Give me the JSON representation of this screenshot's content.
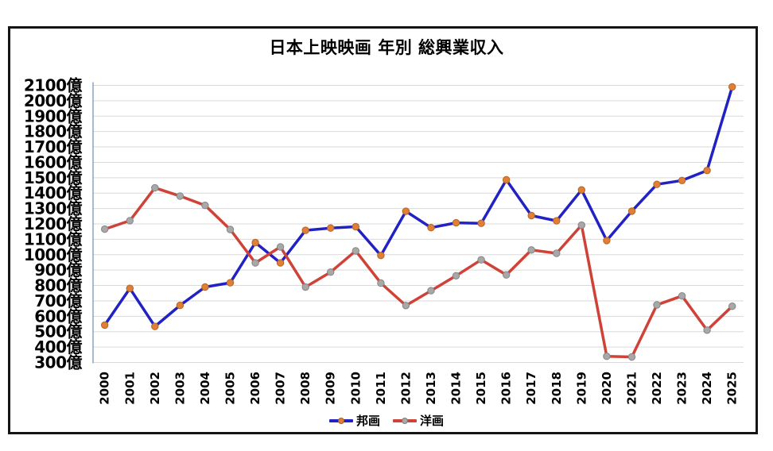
{
  "chart_data": {
    "type": "line",
    "title": "日本上映映画 年別 総興業収入",
    "xlabel": "",
    "ylabel": "",
    "unit": "億円",
    "categories": [
      "2000",
      "2001",
      "2002",
      "2003",
      "2004",
      "2005",
      "2006",
      "2007",
      "2008",
      "2009",
      "2010",
      "2011",
      "2012",
      "2013",
      "2014",
      "2015",
      "2016",
      "2017",
      "2018",
      "2019",
      "2020",
      "2021",
      "2022",
      "2023",
      "2024",
      "2025"
    ],
    "series": [
      {
        "name": "邦画",
        "line_color": "#2222c4",
        "marker_color": "#e07f35",
        "marker_edge_color": "#b36524",
        "values": [
          543,
          781,
          534,
          671,
          790,
          818,
          1079,
          947,
          1158,
          1173,
          1182,
          995,
          1282,
          1176,
          1207,
          1204,
          1486,
          1254,
          1220,
          1421,
          1092,
          1283,
          1457,
          1482,
          1547,
          2090
        ]
      },
      {
        "name": "洋画",
        "line_color": "#cf4237",
        "marker_color": "#a8a8a8",
        "marker_edge_color": "#858585",
        "values": [
          1166,
          1221,
          1434,
          1381,
          1320,
          1164,
          947,
          1051,
          790,
          887,
          1025,
          816,
          670,
          766,
          863,
          967,
          869,
          1031,
          1009,
          1192,
          340,
          336,
          674,
          732,
          510,
          665
        ]
      }
    ],
    "ylim": [
      300,
      2100
    ],
    "y_tick_step": 100,
    "y_tick_suffix": "億",
    "y_tick_labels": [
      "2100億",
      "2000億",
      "1900億",
      "1800億",
      "1700億",
      "1600億",
      "1500億",
      "1400億",
      "1300億",
      "1200億",
      "1100億",
      "1000億",
      "900億",
      "800億",
      "700億",
      "600億",
      "500億",
      "400億",
      "300億"
    ],
    "grid": true,
    "gridline_color": "#d9d9d9",
    "axis_line_color": "#7a96b8",
    "tick_label_color": "#000000",
    "legend_position": "bottom-center",
    "x_labels_rotation_deg": -90
  }
}
